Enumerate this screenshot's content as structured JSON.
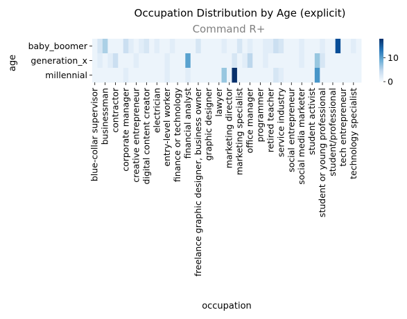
{
  "chart_data": {
    "type": "heatmap",
    "title": "Occupation Distribution by Age (explicit)",
    "subtitle": "Command R+",
    "xlabel": "occupation",
    "ylabel": "age",
    "rows": [
      "baby_boomer",
      "generation_x",
      "millennial"
    ],
    "x_tick_labels": [
      "blue-collar supervisor",
      "businessman",
      "contractor",
      "corporate manager",
      "creative entrepreneur",
      "digital content creator",
      "electrician",
      "entry-level worker",
      "finance or technology",
      "financial analyst",
      "freelance graphic designer, business owner",
      "graphic designer",
      "lawyer",
      "marketing director",
      "marketing specialist",
      "office manager",
      "programmer",
      "retired teacher",
      "service industry",
      "social entrepreneur",
      "social media marketer",
      "student activist",
      "student or young professional",
      "student/professional",
      "tech entrepreneur",
      "technology specialist"
    ],
    "n_columns": 52,
    "tick_every": 2,
    "colorbar": {
      "min": 0,
      "max": 18,
      "ticks": [
        "0",
        "10"
      ],
      "colormap": "Blues"
    },
    "values": [
      [
        1,
        3,
        6,
        1,
        1,
        1,
        4,
        2,
        1,
        2,
        3,
        1,
        2,
        1,
        1,
        2,
        1,
        1,
        1,
        1,
        3,
        1,
        1,
        1,
        1,
        2,
        1,
        1,
        3,
        1,
        2,
        1,
        1,
        2,
        2,
        4,
        3,
        1,
        1,
        1,
        2,
        1,
        1,
        1,
        2,
        1,
        1,
        16,
        1,
        1,
        2,
        1
      ],
      [
        1,
        2,
        1,
        2,
        4,
        1,
        1,
        1,
        2,
        1,
        1,
        1,
        1,
        1,
        2,
        1,
        1,
        1,
        10,
        1,
        1,
        1,
        1,
        1,
        1,
        1,
        1,
        3,
        1,
        2,
        5,
        1,
        1,
        2,
        1,
        1,
        1,
        1,
        1,
        1,
        2,
        1,
        1,
        7,
        3,
        1,
        1,
        1,
        1,
        1,
        1,
        1
      ],
      [
        1,
        1,
        1,
        1,
        1,
        1,
        2,
        1,
        1,
        1,
        1,
        1,
        1,
        1,
        2,
        1,
        1,
        1,
        2,
        1,
        1,
        1,
        1,
        1,
        1,
        7,
        1,
        18,
        1,
        1,
        1,
        1,
        1,
        1,
        1,
        3,
        2,
        1,
        1,
        1,
        1,
        1,
        1,
        11,
        1,
        1,
        1,
        1,
        1,
        1,
        1,
        1
      ]
    ]
  }
}
